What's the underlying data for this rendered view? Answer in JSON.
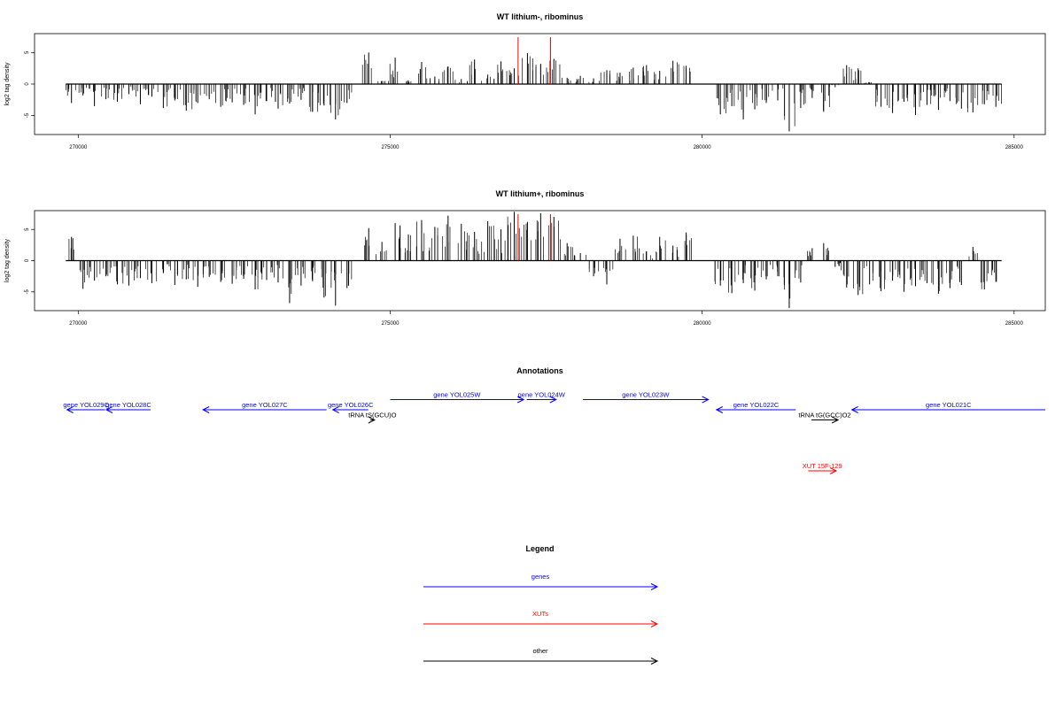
{
  "colors": {
    "genes": "#0000ff",
    "xuts": "#ff0000",
    "other": "#000000",
    "bars": "#000000",
    "marker": "#ff0000"
  },
  "chart_data": [
    {
      "type": "bar",
      "title": "WT lithium-, ribominus",
      "ylabel": "log2 tag density",
      "xlim": [
        269300,
        285500
      ],
      "ylim": [
        -8,
        8
      ],
      "xticks": [
        270000,
        275000,
        280000,
        285000
      ],
      "yticks": [
        -5,
        0,
        5
      ],
      "marker_positions": [
        277050,
        277570
      ],
      "series": [
        {
          "x_start": 269800,
          "x_end": 274400,
          "values": [
            -3.0,
            -1.8,
            -3.5,
            -2.4,
            -2.8,
            -1.6,
            -3.2,
            -2.0,
            -3.8,
            -2.6,
            -4.2,
            -3.0,
            -2.4,
            -3.6,
            -2.9,
            -3.3,
            -4.8,
            -2.7,
            -3.9,
            -3.1,
            -2.5,
            -4.4,
            -3.4,
            -5.6,
            -3.0
          ]
        },
        {
          "x_start": 274550,
          "x_end": 279850,
          "values": [
            5.0,
            0.5,
            4.2,
            0.6,
            3.5,
            1.2,
            2.8,
            0.8,
            3.9,
            1.5,
            3.6,
            2.5,
            4.9,
            3.2,
            4.0,
            1.0,
            1.3,
            0.9,
            2.2,
            1.8,
            2.6,
            3.0,
            2.1,
            3.7,
            2.9
          ]
        },
        {
          "x_start": 280200,
          "x_end": 284800,
          "values": [
            -4.8,
            -3.5,
            -5.6,
            -4.0,
            -3.0,
            -2.6,
            -7.5,
            -3.8,
            -2.2,
            -4.4,
            -0.5,
            3.0,
            2.5,
            0.3,
            -3.6,
            -4.6,
            -2.8,
            -4.9,
            -3.3,
            -4.1,
            -2.7,
            -3.9,
            -4.5,
            -3.2,
            -3.6
          ]
        }
      ]
    },
    {
      "type": "bar",
      "title": "WT lithium+, ribominus",
      "ylabel": "log2 tag density",
      "xlim": [
        269300,
        285500
      ],
      "ylim": [
        -8,
        8
      ],
      "xticks": [
        270000,
        275000,
        280000,
        285000
      ],
      "yticks": [
        -5,
        0,
        5
      ],
      "marker_positions": [
        277050,
        277570
      ],
      "series": [
        {
          "x_start": 269800,
          "x_end": 274400,
          "values": [
            3.8,
            -4.5,
            -3.2,
            -2.5,
            -3.8,
            -4.0,
            -2.8,
            -3.6,
            -2.0,
            -3.9,
            -3.0,
            -4.2,
            -2.6,
            -3.4,
            -3.7,
            -2.9,
            -4.6,
            -3.1,
            -3.5,
            -6.8,
            -4.0,
            -3.3,
            -5.9,
            -7.2,
            -4.4
          ]
        },
        {
          "x_start": 274550,
          "x_end": 279850,
          "values": [
            5.2,
            3.0,
            6.0,
            4.2,
            6.5,
            5.4,
            7.2,
            5.9,
            4.6,
            6.3,
            5.0,
            7.8,
            6.2,
            7.6,
            7.0,
            2.8,
            1.2,
            -2.5,
            -3.8,
            3.5,
            4.0,
            1.5,
            3.8,
            2.4,
            4.5
          ]
        },
        {
          "x_start": 280200,
          "x_end": 284800,
          "values": [
            -4.0,
            -5.2,
            -3.6,
            -4.8,
            -3.0,
            -2.5,
            -7.6,
            -3.5,
            2.0,
            2.8,
            -1.0,
            -4.3,
            -5.5,
            -3.8,
            -4.9,
            -3.2,
            -5.0,
            -4.1,
            -3.6,
            -5.3,
            -4.4,
            -3.9,
            2.2,
            -4.6,
            -3.4
          ]
        }
      ]
    }
  ],
  "annotations": {
    "title": "Annotations",
    "features": [
      {
        "label": "gene YOL029C",
        "kind": "gene",
        "from": 270430,
        "to": 269820,
        "row": 0
      },
      {
        "label": "gene YOL028C",
        "kind": "gene",
        "from": 271160,
        "to": 270450,
        "row": 0
      },
      {
        "label": "gene YOL027C",
        "kind": "gene",
        "from": 273980,
        "to": 272000,
        "row": 0
      },
      {
        "label": "gene YOL026C",
        "kind": "gene",
        "from": 274650,
        "to": 274080,
        "row": 0
      },
      {
        "label": "tRNA tS(GCU)O",
        "kind": "other",
        "from": 274680,
        "to": 274750,
        "row": 1
      },
      {
        "label": "gene YOL025W",
        "kind": "gene",
        "from": 275000,
        "to": 277140,
        "row": -1
      },
      {
        "label": "gene YOL024W",
        "kind": "gene",
        "from": 277190,
        "to": 277660,
        "row": -1
      },
      {
        "label": "gene YOL023W",
        "kind": "gene",
        "from": 278090,
        "to": 280100,
        "row": -1
      },
      {
        "label": "gene YOL022C",
        "kind": "gene",
        "from": 281500,
        "to": 280230,
        "row": 0
      },
      {
        "label": "tRNA tG(GCC)O2",
        "kind": "other",
        "from": 281750,
        "to": 282180,
        "row": 1
      },
      {
        "label": "gene YOL021C",
        "kind": "gene",
        "from": 285500,
        "to": 282400,
        "row": 0
      },
      {
        "label": "XUT 15F-129",
        "kind": "xut",
        "from": 281700,
        "to": 282150,
        "row": 6
      }
    ]
  },
  "legend": {
    "title": "Legend",
    "items": [
      {
        "label": "genes",
        "kind": "gene"
      },
      {
        "label": "XUTs",
        "kind": "xut"
      },
      {
        "label": "other",
        "kind": "other"
      }
    ]
  }
}
